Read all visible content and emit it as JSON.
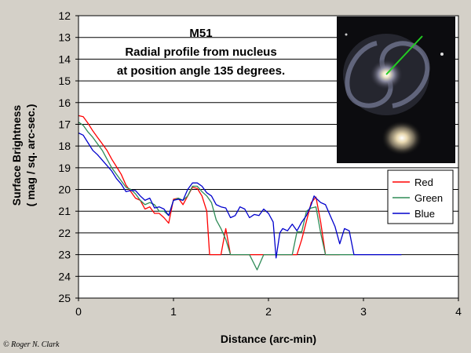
{
  "credit": "© Roger N. Clark",
  "chart_data": {
    "type": "line",
    "title": "M51",
    "subtitle_lines": [
      "Radial profile from nucleus",
      "at position angle 135 degrees."
    ],
    "xlabel": "Distance (arc-min)",
    "ylabel_lines": [
      "Surface Brightness",
      "( mag / sq. arc-sec.)"
    ],
    "xlim": [
      0,
      4
    ],
    "ylim": [
      12,
      25
    ],
    "y_inverted": true,
    "xticks": [
      "0",
      "1",
      "2",
      "3",
      "4"
    ],
    "yticks": [
      "12",
      "13",
      "14",
      "15",
      "16",
      "17",
      "18",
      "19",
      "20",
      "21",
      "22",
      "23",
      "24",
      "25"
    ],
    "grid": "horizontal",
    "legend_position": "right",
    "inset": "galaxy image with green line showing profile direction",
    "series": [
      {
        "name": "Red",
        "color": "#ff0000",
        "points": [
          [
            0.0,
            16.6
          ],
          [
            0.05,
            16.65
          ],
          [
            0.1,
            16.95
          ],
          [
            0.15,
            17.3
          ],
          [
            0.2,
            17.6
          ],
          [
            0.25,
            17.9
          ],
          [
            0.3,
            18.2
          ],
          [
            0.35,
            18.6
          ],
          [
            0.4,
            18.95
          ],
          [
            0.45,
            19.3
          ],
          [
            0.5,
            19.8
          ],
          [
            0.55,
            20.1
          ],
          [
            0.6,
            20.4
          ],
          [
            0.65,
            20.5
          ],
          [
            0.7,
            20.9
          ],
          [
            0.75,
            20.8
          ],
          [
            0.8,
            21.1
          ],
          [
            0.85,
            21.1
          ],
          [
            0.9,
            21.3
          ],
          [
            0.95,
            21.55
          ],
          [
            1.0,
            20.45
          ],
          [
            1.05,
            20.4
          ],
          [
            1.1,
            20.7
          ],
          [
            1.15,
            20.3
          ],
          [
            1.2,
            19.9
          ],
          [
            1.25,
            19.95
          ],
          [
            1.3,
            20.3
          ],
          [
            1.35,
            21.0
          ],
          [
            1.38,
            23.0
          ],
          [
            1.5,
            23.0
          ],
          [
            1.55,
            21.8
          ],
          [
            1.6,
            23.0
          ],
          [
            2.3,
            23.0
          ],
          [
            2.35,
            22.3
          ],
          [
            2.45,
            20.6
          ],
          [
            2.5,
            20.35
          ],
          [
            2.55,
            21.5
          ],
          [
            2.6,
            23.0
          ],
          [
            2.75,
            23.0
          ]
        ]
      },
      {
        "name": "Green",
        "color": "#2e8b57",
        "points": [
          [
            0.0,
            16.9
          ],
          [
            0.05,
            17.05
          ],
          [
            0.1,
            17.35
          ],
          [
            0.15,
            17.6
          ],
          [
            0.2,
            17.9
          ],
          [
            0.25,
            18.2
          ],
          [
            0.3,
            18.6
          ],
          [
            0.35,
            19.0
          ],
          [
            0.4,
            19.3
          ],
          [
            0.45,
            19.6
          ],
          [
            0.5,
            19.9
          ],
          [
            0.55,
            20.0
          ],
          [
            0.6,
            20.2
          ],
          [
            0.65,
            20.5
          ],
          [
            0.7,
            20.7
          ],
          [
            0.75,
            20.6
          ],
          [
            0.8,
            20.7
          ],
          [
            0.85,
            21.0
          ],
          [
            0.9,
            21.0
          ],
          [
            0.95,
            21.2
          ],
          [
            1.0,
            20.5
          ],
          [
            1.05,
            20.4
          ],
          [
            1.1,
            20.5
          ],
          [
            1.15,
            20.3
          ],
          [
            1.2,
            19.85
          ],
          [
            1.25,
            19.85
          ],
          [
            1.3,
            20.1
          ],
          [
            1.35,
            20.3
          ],
          [
            1.4,
            20.6
          ],
          [
            1.45,
            21.4
          ],
          [
            1.5,
            21.8
          ],
          [
            1.55,
            22.3
          ],
          [
            1.6,
            23.0
          ],
          [
            1.8,
            23.0
          ],
          [
            1.88,
            23.7
          ],
          [
            1.95,
            23.0
          ],
          [
            2.25,
            23.0
          ],
          [
            2.3,
            21.95
          ],
          [
            2.35,
            21.95
          ],
          [
            2.4,
            21.0
          ],
          [
            2.45,
            20.85
          ],
          [
            2.5,
            20.8
          ],
          [
            2.55,
            22.0
          ],
          [
            2.6,
            23.0
          ],
          [
            2.9,
            23.0
          ]
        ]
      },
      {
        "name": "Blue",
        "color": "#0000cc",
        "points": [
          [
            0.0,
            17.4
          ],
          [
            0.05,
            17.5
          ],
          [
            0.1,
            17.85
          ],
          [
            0.15,
            18.2
          ],
          [
            0.2,
            18.4
          ],
          [
            0.25,
            18.65
          ],
          [
            0.3,
            18.9
          ],
          [
            0.35,
            19.15
          ],
          [
            0.4,
            19.5
          ],
          [
            0.45,
            19.75
          ],
          [
            0.5,
            20.1
          ],
          [
            0.55,
            20.05
          ],
          [
            0.6,
            20.05
          ],
          [
            0.65,
            20.3
          ],
          [
            0.7,
            20.5
          ],
          [
            0.75,
            20.4
          ],
          [
            0.8,
            20.85
          ],
          [
            0.85,
            20.8
          ],
          [
            0.9,
            20.9
          ],
          [
            0.95,
            21.2
          ],
          [
            1.0,
            20.5
          ],
          [
            1.05,
            20.45
          ],
          [
            1.1,
            20.5
          ],
          [
            1.15,
            20.0
          ],
          [
            1.2,
            19.7
          ],
          [
            1.25,
            19.7
          ],
          [
            1.3,
            19.85
          ],
          [
            1.35,
            20.15
          ],
          [
            1.4,
            20.3
          ],
          [
            1.45,
            20.7
          ],
          [
            1.5,
            20.8
          ],
          [
            1.55,
            20.85
          ],
          [
            1.6,
            21.3
          ],
          [
            1.65,
            21.2
          ],
          [
            1.7,
            20.8
          ],
          [
            1.75,
            20.9
          ],
          [
            1.8,
            21.3
          ],
          [
            1.85,
            21.15
          ],
          [
            1.9,
            21.2
          ],
          [
            1.95,
            20.9
          ],
          [
            2.0,
            21.1
          ],
          [
            2.05,
            21.5
          ],
          [
            2.08,
            23.15
          ],
          [
            2.12,
            22.0
          ],
          [
            2.15,
            21.8
          ],
          [
            2.2,
            21.9
          ],
          [
            2.25,
            21.6
          ],
          [
            2.3,
            21.9
          ],
          [
            2.35,
            21.5
          ],
          [
            2.4,
            21.2
          ],
          [
            2.45,
            20.7
          ],
          [
            2.48,
            20.3
          ],
          [
            2.5,
            20.4
          ],
          [
            2.55,
            20.6
          ],
          [
            2.6,
            20.7
          ],
          [
            2.65,
            21.2
          ],
          [
            2.7,
            21.7
          ],
          [
            2.75,
            22.5
          ],
          [
            2.8,
            21.8
          ],
          [
            2.85,
            21.9
          ],
          [
            2.9,
            23.0
          ],
          [
            3.4,
            23.0
          ]
        ]
      }
    ]
  }
}
